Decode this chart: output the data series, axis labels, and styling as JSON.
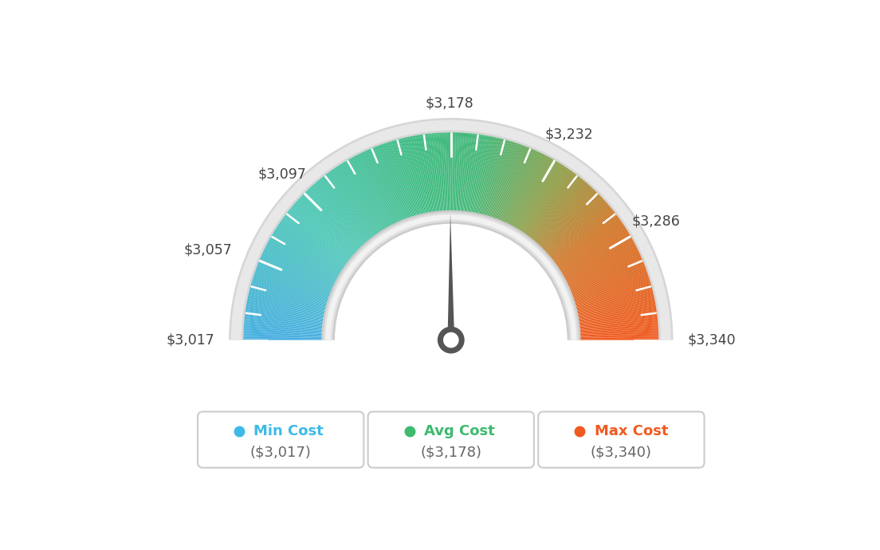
{
  "min_val": 3017,
  "max_val": 3340,
  "avg_val": 3178,
  "tick_labels": [
    [
      3017,
      "$3,017"
    ],
    [
      3057,
      "$3,057"
    ],
    [
      3097,
      "$3,097"
    ],
    [
      3178,
      "$3,178"
    ],
    [
      3232,
      "$3,232"
    ],
    [
      3286,
      "$3,286"
    ],
    [
      3340,
      "$3,340"
    ]
  ],
  "min_label": "Min Cost",
  "avg_label": "Avg Cost",
  "max_label": "Max Cost",
  "min_display": "($3,017)",
  "avg_display": "($3,178)",
  "max_display": "($3,340)",
  "min_color": "#3dbae8",
  "avg_color": "#3dba6e",
  "max_color": "#f05a20",
  "bg_color": "#ffffff",
  "needle_color": "#555555",
  "rim_color": "#d8d8d8",
  "inner_arc_color": "#e0e0e0"
}
